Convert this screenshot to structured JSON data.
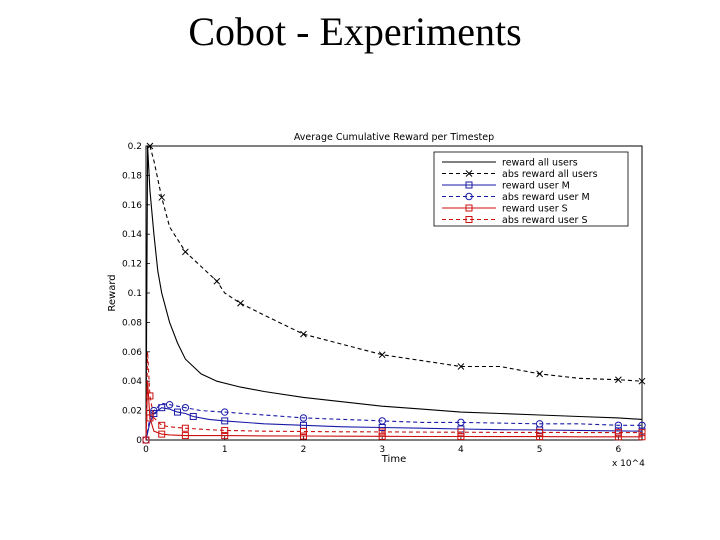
{
  "slide": {
    "title": "Cobot - Experiments"
  },
  "chart_data": {
    "type": "line",
    "title": "Average Cumulative Reward per Timestep",
    "xlabel": "Time",
    "ylabel": "Reward",
    "x_multiplier": "x 10^4",
    "xlim": [
      0,
      6.3
    ],
    "ylim": [
      0,
      0.2
    ],
    "xticks": [
      0,
      1,
      2,
      3,
      4,
      5,
      6
    ],
    "yticks": [
      0,
      0.02,
      0.04,
      0.06,
      0.08,
      0.1,
      0.12,
      0.14,
      0.16,
      0.18,
      0.2
    ],
    "ytick_labels": [
      "0",
      "0.02",
      "0.04",
      "0.06",
      "0.08",
      "0.1",
      "0.12",
      "0.14",
      "0.16",
      "0.18",
      "0.2"
    ],
    "legend_position": "top-right",
    "grid": false,
    "series": [
      {
        "name": "reward all users",
        "color": "#000000",
        "dash": "",
        "marker": "none",
        "x": [
          0,
          0.02,
          0.05,
          0.1,
          0.15,
          0.2,
          0.3,
          0.4,
          0.5,
          0.7,
          0.9,
          1.2,
          1.5,
          2.0,
          2.5,
          3.0,
          3.5,
          4.0,
          4.5,
          5.0,
          5.5,
          6.0,
          6.3
        ],
        "y": [
          0.0,
          0.2,
          0.17,
          0.14,
          0.115,
          0.1,
          0.08,
          0.066,
          0.055,
          0.045,
          0.04,
          0.036,
          0.033,
          0.029,
          0.026,
          0.023,
          0.021,
          0.019,
          0.018,
          0.017,
          0.016,
          0.015,
          0.014
        ]
      },
      {
        "name": "abs reward all users",
        "color": "#000000",
        "dash": "4,3",
        "marker": "x",
        "x": [
          0.05,
          0.1,
          0.2,
          0.3,
          0.5,
          0.7,
          0.9,
          1.0,
          1.2,
          1.5,
          2.0,
          2.5,
          3.0,
          3.5,
          4.0,
          4.5,
          5.0,
          5.5,
          6.0,
          6.3
        ],
        "y": [
          0.2,
          0.19,
          0.165,
          0.145,
          0.128,
          0.118,
          0.108,
          0.1,
          0.093,
          0.085,
          0.072,
          0.065,
          0.058,
          0.054,
          0.05,
          0.05,
          0.045,
          0.042,
          0.041,
          0.04
        ]
      },
      {
        "name": "reward user M",
        "color": "#1a1aa8",
        "dash": "",
        "marker": "square",
        "x": [
          0,
          0.05,
          0.1,
          0.15,
          0.2,
          0.3,
          0.4,
          0.5,
          0.6,
          0.8,
          1.0,
          1.5,
          2.0,
          2.5,
          3.0,
          3.5,
          4.0,
          4.5,
          5.0,
          5.5,
          6.0,
          6.3
        ],
        "y": [
          0.0,
          0.012,
          0.018,
          0.02,
          0.022,
          0.021,
          0.019,
          0.018,
          0.016,
          0.014,
          0.013,
          0.011,
          0.01,
          0.009,
          0.0085,
          0.008,
          0.0075,
          0.007,
          0.0068,
          0.0065,
          0.0062,
          0.006
        ]
      },
      {
        "name": "abs reward user M",
        "color": "#1a1aa8",
        "dash": "4,3",
        "marker": "circle",
        "x": [
          0,
          0.05,
          0.1,
          0.2,
          0.3,
          0.4,
          0.5,
          0.7,
          1.0,
          1.5,
          2.0,
          2.5,
          3.0,
          3.5,
          4.0,
          4.5,
          5.0,
          5.5,
          6.0,
          6.3
        ],
        "y": [
          0.0,
          0.015,
          0.02,
          0.025,
          0.024,
          0.023,
          0.022,
          0.02,
          0.019,
          0.017,
          0.015,
          0.014,
          0.013,
          0.012,
          0.012,
          0.0115,
          0.011,
          0.011,
          0.01,
          0.01
        ]
      },
      {
        "name": "reward user S",
        "color": "#cc1111",
        "dash": "",
        "marker": "square",
        "x": [
          0,
          0.02,
          0.05,
          0.1,
          0.2,
          0.3,
          0.5,
          0.8,
          1.0,
          1.5,
          2.0,
          2.5,
          3.0,
          3.5,
          4.0,
          4.5,
          5.0,
          5.5,
          6.0,
          6.3
        ],
        "y": [
          0.0,
          0.04,
          0.015,
          0.006,
          0.004,
          0.0035,
          0.003,
          0.003,
          0.003,
          0.0028,
          0.0027,
          0.0026,
          0.0025,
          0.0024,
          0.0024,
          0.0023,
          0.0023,
          0.0022,
          0.0022,
          0.0022
        ]
      },
      {
        "name": "abs reward user S",
        "color": "#cc1111",
        "dash": "4,3",
        "marker": "square",
        "x": [
          0,
          0.02,
          0.05,
          0.1,
          0.2,
          0.3,
          0.5,
          0.8,
          1.0,
          1.5,
          2.0,
          2.5,
          3.0,
          3.5,
          4.0,
          4.5,
          5.0,
          5.5,
          6.0,
          6.3
        ],
        "y": [
          0.0,
          0.06,
          0.03,
          0.015,
          0.01,
          0.009,
          0.008,
          0.007,
          0.0065,
          0.006,
          0.0058,
          0.0056,
          0.0055,
          0.0054,
          0.0053,
          0.0052,
          0.0052,
          0.0051,
          0.005,
          0.005
        ]
      }
    ]
  }
}
